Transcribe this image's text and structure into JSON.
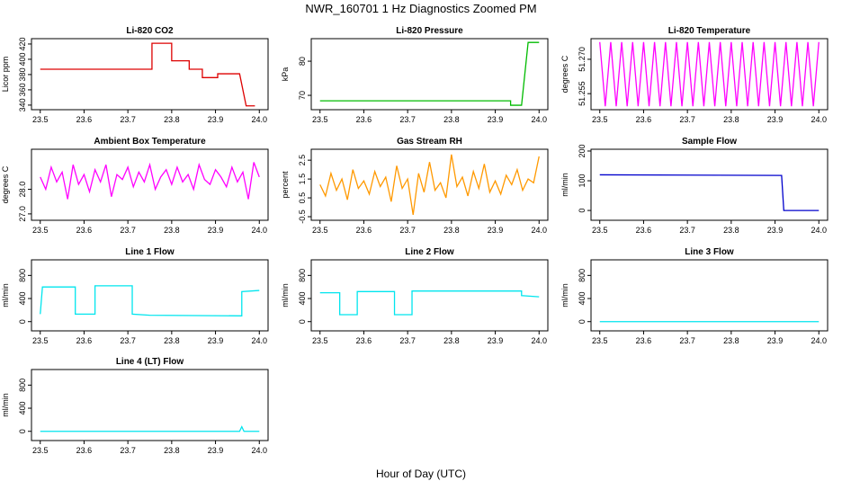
{
  "title": "NWR_160701  1 Hz Diagnostics Zoomed PM",
  "xlabel": "Hour of Day (UTC)",
  "chart_data": [
    {
      "type": "line",
      "title": "Li-820 CO2",
      "ylabel": "Licor ppm",
      "xlim": [
        23.48,
        24.02
      ],
      "ylim": [
        334,
        427
      ],
      "xticks": [
        23.5,
        23.6,
        23.7,
        23.8,
        23.9,
        {
          "value": 24,
          "label": "24.0"
        }
      ],
      "yticks": [
        340,
        360,
        380,
        400,
        420
      ],
      "x": [
        23.5,
        23.755,
        23.755,
        23.8,
        23.8,
        23.84,
        23.84,
        23.87,
        23.87,
        23.905,
        23.905,
        23.955,
        23.97,
        23.99
      ],
      "series": [
        {
          "color": "#dd0000",
          "values": [
            387,
            387,
            421,
            421,
            398,
            398,
            387,
            387,
            376,
            376,
            381,
            381,
            339,
            339
          ]
        }
      ]
    },
    {
      "type": "line",
      "title": "Li-820 Pressure",
      "ylabel": "kPa",
      "xlim": [
        23.48,
        24.02
      ],
      "ylim": [
        65.8,
        86.6
      ],
      "xticks": [
        23.5,
        23.6,
        23.7,
        23.8,
        23.9,
        {
          "value": 24,
          "label": "24.0"
        }
      ],
      "yticks": [
        70,
        80
      ],
      "x": [
        23.5,
        23.935,
        23.935,
        23.96,
        23.975,
        24.0
      ],
      "series": [
        {
          "color": "#00bb00",
          "values": [
            68.4,
            68.4,
            67.1,
            67.1,
            85.5,
            85.5
          ]
        }
      ]
    },
    {
      "type": "line",
      "title": "Li-820 Temperature",
      "ylabel": "degrees C",
      "xlim": [
        23.48,
        24.02
      ],
      "ylim": [
        51.248,
        51.279
      ],
      "xticks": [
        23.5,
        23.6,
        23.7,
        23.8,
        23.9,
        {
          "value": 24,
          "label": "24.0"
        }
      ],
      "yticks": [
        51.255,
        {
          "value": 51.27,
          "label": "51.270"
        }
      ],
      "x": [
        23.5,
        23.5125,
        23.525,
        23.5375,
        23.55,
        23.5625,
        23.575,
        23.5875,
        23.6,
        23.6125,
        23.625,
        23.6375,
        23.65,
        23.6625,
        23.675,
        23.6875,
        23.7,
        23.7125,
        23.725,
        23.7375,
        23.75,
        23.7625,
        23.775,
        23.7875,
        23.8,
        23.8125,
        23.825,
        23.8375,
        23.85,
        23.8625,
        23.875,
        23.8875,
        23.9,
        23.9125,
        23.925,
        23.9375,
        23.95,
        23.9625,
        23.975,
        23.9875,
        24.0
      ],
      "series": [
        {
          "color": "#ff00ff",
          "values": [
            51.2775,
            51.2495,
            51.2775,
            51.2495,
            51.2775,
            51.2495,
            51.2775,
            51.2495,
            51.2775,
            51.2495,
            51.2775,
            51.2495,
            51.2775,
            51.2495,
            51.2775,
            51.2495,
            51.2775,
            51.2495,
            51.2775,
            51.2495,
            51.2775,
            51.2495,
            51.2775,
            51.2495,
            51.2775,
            51.2495,
            51.2775,
            51.2495,
            51.2775,
            51.2495,
            51.2775,
            51.2495,
            51.2775,
            51.2495,
            51.2775,
            51.2495,
            51.2775,
            51.2495,
            51.2775,
            51.2495,
            51.2775
          ]
        }
      ]
    },
    {
      "type": "line",
      "title": "Ambient Box Temperature",
      "ylabel": "degrees C",
      "xlim": [
        23.48,
        24.02
      ],
      "ylim": [
        26.74,
        29.63
      ],
      "xticks": [
        23.5,
        23.6,
        23.7,
        23.8,
        23.9,
        {
          "value": 24,
          "label": "24.0"
        }
      ],
      "yticks": [
        {
          "value": 27,
          "label": "27.0"
        },
        {
          "value": 28,
          "label": "28.0"
        }
      ],
      "x": [
        23.5,
        23.5125,
        23.525,
        23.5375,
        23.55,
        23.5625,
        23.575,
        23.5875,
        23.6,
        23.6125,
        23.625,
        23.6375,
        23.65,
        23.6625,
        23.675,
        23.6875,
        23.7,
        23.7125,
        23.725,
        23.7375,
        23.75,
        23.7625,
        23.775,
        23.7875,
        23.8,
        23.8125,
        23.825,
        23.8375,
        23.85,
        23.8625,
        23.875,
        23.8875,
        23.9,
        23.9125,
        23.925,
        23.9375,
        23.95,
        23.9625,
        23.975,
        23.9875,
        24.0
      ],
      "series": [
        {
          "color": "#ff00ff",
          "values": [
            28.5,
            28.0,
            28.9,
            28.3,
            28.7,
            27.6,
            29.0,
            28.2,
            28.6,
            27.9,
            28.8,
            28.3,
            29.0,
            27.7,
            28.6,
            28.4,
            28.9,
            28.1,
            28.7,
            28.3,
            29.0,
            28.0,
            28.5,
            28.8,
            28.2,
            28.9,
            28.3,
            28.6,
            28.0,
            29.0,
            28.4,
            28.2,
            28.8,
            28.5,
            28.1,
            28.9,
            28.3,
            28.7,
            27.6,
            29.1,
            28.5
          ]
        }
      ]
    },
    {
      "type": "line",
      "title": "Gas Stream RH",
      "ylabel": "percent",
      "xlim": [
        23.48,
        24.02
      ],
      "ylim": [
        -0.69,
        3.08
      ],
      "xticks": [
        23.5,
        23.6,
        23.7,
        23.8,
        23.9,
        {
          "value": 24,
          "label": "24.0"
        }
      ],
      "yticks": [
        -0.5,
        0.5,
        1.5,
        2.5
      ],
      "x": [
        23.5,
        23.5125,
        23.525,
        23.5375,
        23.55,
        23.5625,
        23.575,
        23.5875,
        23.6,
        23.6125,
        23.625,
        23.6375,
        23.65,
        23.6625,
        23.675,
        23.6875,
        23.7,
        23.7125,
        23.725,
        23.7375,
        23.75,
        23.7625,
        23.775,
        23.7875,
        23.8,
        23.8125,
        23.825,
        23.8375,
        23.85,
        23.8625,
        23.875,
        23.8875,
        23.9,
        23.9125,
        23.925,
        23.9375,
        23.95,
        23.9625,
        23.975,
        23.9875,
        24.0
      ],
      "series": [
        {
          "color": "#ff9900",
          "values": [
            1.2,
            0.6,
            1.8,
            0.9,
            1.5,
            0.4,
            2.0,
            1.0,
            1.4,
            0.7,
            1.9,
            1.1,
            1.6,
            0.3,
            2.2,
            1.0,
            1.5,
            -0.4,
            1.8,
            0.8,
            2.4,
            0.9,
            1.3,
            0.5,
            2.8,
            1.1,
            1.6,
            0.6,
            1.9,
            1.0,
            2.3,
            0.8,
            1.4,
            0.7,
            1.7,
            1.2,
            2.0,
            0.9,
            1.5,
            1.3,
            2.7
          ]
        }
      ]
    },
    {
      "type": "line",
      "title": "Sample Flow",
      "ylabel": "ml/min",
      "xlim": [
        23.48,
        24.02
      ],
      "ylim": [
        -33,
        206
      ],
      "xticks": [
        23.5,
        23.6,
        23.7,
        23.8,
        23.9,
        {
          "value": 24,
          "label": "24.0"
        }
      ],
      "yticks": [
        0,
        100,
        200
      ],
      "x": [
        23.5,
        23.915,
        23.92,
        24.0
      ],
      "series": [
        {
          "color": "#0000cc",
          "values": [
            120,
            118,
            0,
            0
          ]
        }
      ]
    },
    {
      "type": "line",
      "title": "Line 1 Flow",
      "ylabel": "ml/min",
      "xlim": [
        23.48,
        24.02
      ],
      "ylim": [
        -160,
        1070
      ],
      "xticks": [
        23.5,
        23.6,
        23.7,
        23.8,
        23.9,
        {
          "value": 24,
          "label": "24.0"
        }
      ],
      "yticks": [
        0,
        400,
        800
      ],
      "x": [
        23.5,
        23.505,
        23.58,
        23.58,
        23.625,
        23.625,
        23.71,
        23.71,
        23.75,
        23.96,
        23.96,
        24.0
      ],
      "series": [
        {
          "color": "#00e5ee",
          "values": [
            130,
            600,
            600,
            130,
            130,
            620,
            620,
            130,
            110,
            100,
            520,
            540
          ]
        }
      ]
    },
    {
      "type": "line",
      "title": "Line 2 Flow",
      "ylabel": "ml/min",
      "xlim": [
        23.48,
        24.02
      ],
      "ylim": [
        -160,
        1070
      ],
      "xticks": [
        23.5,
        23.6,
        23.7,
        23.8,
        23.9,
        {
          "value": 24,
          "label": "24.0"
        }
      ],
      "yticks": [
        0,
        400,
        800
      ],
      "x": [
        23.5,
        23.545,
        23.545,
        23.585,
        23.585,
        23.67,
        23.67,
        23.71,
        23.71,
        23.96,
        23.96,
        24.0
      ],
      "series": [
        {
          "color": "#00e5ee",
          "values": [
            500,
            500,
            120,
            120,
            520,
            520,
            120,
            120,
            530,
            530,
            450,
            430
          ]
        }
      ]
    },
    {
      "type": "line",
      "title": "Line 3 Flow",
      "ylabel": "ml/min",
      "xlim": [
        23.48,
        24.02
      ],
      "ylim": [
        -160,
        1070
      ],
      "xticks": [
        23.5,
        23.6,
        23.7,
        23.8,
        23.9,
        {
          "value": 24,
          "label": "24.0"
        }
      ],
      "yticks": [
        0,
        400,
        800
      ],
      "x": [
        23.5,
        24.0
      ],
      "series": [
        {
          "color": "#00e5ee",
          "values": [
            0,
            0
          ]
        }
      ]
    },
    {
      "type": "line",
      "title": "Line 4 (LT) Flow",
      "ylabel": "ml/min",
      "xlim": [
        23.48,
        24.02
      ],
      "ylim": [
        -160,
        1070
      ],
      "xticks": [
        23.5,
        23.6,
        23.7,
        23.8,
        23.9,
        {
          "value": 24,
          "label": "24.0"
        }
      ],
      "yticks": [
        0,
        400,
        800
      ],
      "x": [
        23.5,
        23.955,
        23.96,
        23.965,
        24.0
      ],
      "series": [
        {
          "color": "#00e5ee",
          "values": [
            0,
            0,
            80,
            0,
            0
          ]
        }
      ]
    }
  ]
}
